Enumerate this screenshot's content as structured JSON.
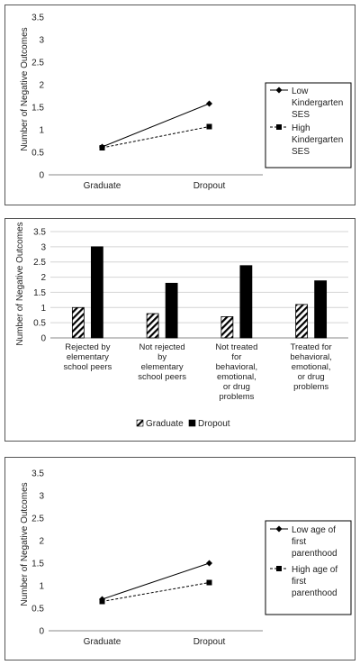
{
  "chart_data": [
    {
      "type": "line",
      "title": "",
      "xlabel": "",
      "ylabel": "Number of Negative Outcomes",
      "categories": [
        "Graduate",
        "Dropout"
      ],
      "ylim": [
        0,
        3.5
      ],
      "yticks": [
        "0",
        "0.5",
        "1",
        "1.5",
        "2",
        "2.5",
        "3",
        "3.5"
      ],
      "grid": false,
      "legend_position": "right",
      "series": [
        {
          "name": "Low Kindergarten SES",
          "legend_lines": [
            "Low",
            "Kindergarten",
            "SES"
          ],
          "values": [
            0.62,
            1.58
          ],
          "line": "solid",
          "marker": "diamond"
        },
        {
          "name": "High Kindergarten SES",
          "legend_lines": [
            "High",
            "Kindergarten",
            "SES"
          ],
          "values": [
            0.6,
            1.07
          ],
          "line": "dashed",
          "marker": "square"
        }
      ]
    },
    {
      "type": "bar",
      "title": "",
      "xlabel": "",
      "ylabel": "Number of Negative Outcomes",
      "categories": [
        [
          "Rejected by",
          "elementary",
          "school peers"
        ],
        [
          "Not rejected",
          "by",
          "elementary",
          "school peers"
        ],
        [
          "Not treated",
          "for",
          "behavioral,",
          "emotional,",
          "or drug",
          "problems"
        ],
        [
          "Treated for",
          "behavioral,",
          "emotional,",
          "or drug",
          "problems"
        ]
      ],
      "ylim": [
        0,
        3.5
      ],
      "yticks": [
        "0",
        "0.5",
        "1",
        "1.5",
        "2",
        "2.5",
        "3",
        "3.5"
      ],
      "grid": true,
      "legend_position": "bottom",
      "series": [
        {
          "name": "Graduate",
          "values": [
            1.0,
            0.8,
            0.7,
            1.1
          ],
          "fill": "hatched"
        },
        {
          "name": "Dropout",
          "values": [
            3.0,
            1.8,
            2.38,
            1.88
          ],
          "fill": "#000000"
        }
      ]
    },
    {
      "type": "line",
      "title": "",
      "xlabel": "",
      "ylabel": "Number of Negative Outcomes",
      "categories": [
        "Graduate",
        "Dropout"
      ],
      "ylim": [
        0,
        3.5
      ],
      "yticks": [
        "0",
        "0.5",
        "1",
        "1.5",
        "2",
        "2.5",
        "3",
        "3.5"
      ],
      "grid": false,
      "legend_position": "right",
      "series": [
        {
          "name": "Low age of first parenthood",
          "legend_lines": [
            "Low age of",
            "first",
            "parenthood"
          ],
          "values": [
            0.7,
            1.5
          ],
          "line": "solid",
          "marker": "diamond"
        },
        {
          "name": "High age of first parenthood",
          "legend_lines": [
            "High age of",
            "first",
            "parenthood"
          ],
          "values": [
            0.65,
            1.07
          ],
          "line": "dashed",
          "marker": "square"
        }
      ]
    }
  ]
}
